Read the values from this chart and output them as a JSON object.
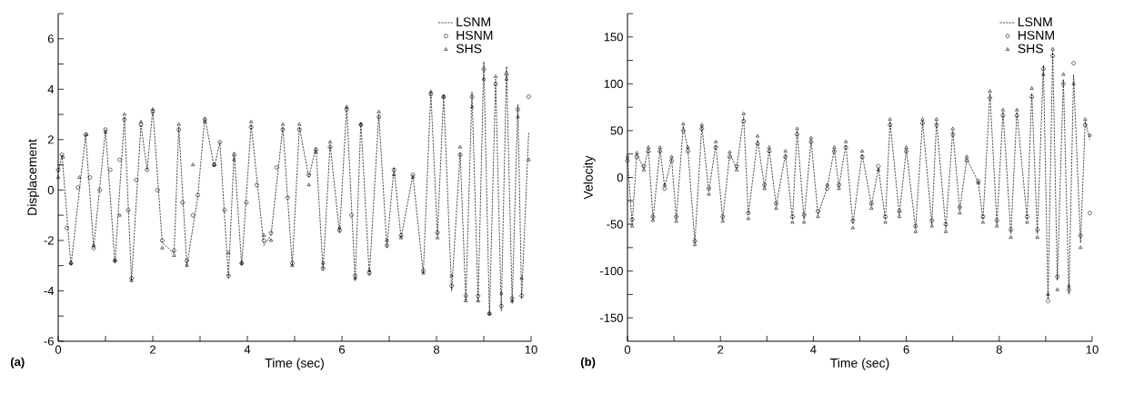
{
  "chart_data": [
    {
      "type": "line",
      "xlabel": "Time (sec)",
      "ylabel": "Displacement",
      "annotations": [
        "(a)"
      ],
      "legend": "top right",
      "xlim": [
        0,
        10
      ],
      "xticks": [
        0,
        {
          "value": 1,
          "label": null
        },
        2,
        {
          "value": 3,
          "label": null
        },
        4,
        {
          "value": 5,
          "label": null
        },
        6,
        {
          "value": 7,
          "label": null
        },
        8,
        {
          "value": 9,
          "label": null
        },
        10
      ],
      "ylim": [
        -6,
        7
      ],
      "yticks": [
        -6,
        {
          "value": -5,
          "label": null
        },
        -4,
        {
          "value": -3,
          "label": null
        },
        -2,
        {
          "value": -1,
          "label": null
        },
        0,
        {
          "value": 1,
          "label": null
        },
        2,
        {
          "value": 3,
          "label": null
        },
        4,
        {
          "value": 5,
          "label": null
        },
        6,
        {
          "value": 7,
          "label": null
        }
      ],
      "series": [
        {
          "name": "LSNM",
          "line_style": "dashed",
          "marker": "none",
          "color": "#000000",
          "x": [
            0.0,
            0.08,
            0.27,
            0.58,
            0.75,
            1.0,
            1.2,
            1.4,
            1.55,
            1.75,
            1.88,
            2.0,
            2.2,
            2.45,
            2.55,
            2.72,
            2.95,
            3.1,
            3.3,
            3.42,
            3.6,
            3.72,
            3.88,
            4.08,
            4.35,
            4.5,
            4.75,
            4.95,
            5.1,
            5.3,
            5.45,
            5.6,
            5.75,
            5.95,
            6.1,
            6.28,
            6.4,
            6.58,
            6.78,
            6.95,
            7.1,
            7.25,
            7.5,
            7.72,
            7.88,
            8.02,
            8.15,
            8.32,
            8.5,
            8.62,
            8.75,
            8.88,
            9.0,
            9.12,
            9.25,
            9.37,
            9.48,
            9.6,
            9.72,
            9.8,
            9.95
          ],
          "values": [
            0.7,
            1.4,
            -3.0,
            2.2,
            -2.3,
            2.4,
            -2.9,
            2.9,
            -3.6,
            2.6,
            0.8,
            3.2,
            -2.1,
            -2.5,
            2.5,
            -3.0,
            -0.3,
            2.9,
            0.9,
            1.9,
            -3.5,
            1.5,
            -3.0,
            2.6,
            -2.2,
            -1.8,
            2.5,
            -3.0,
            2.5,
            0.5,
            1.7,
            -3.2,
            1.8,
            -1.7,
            3.3,
            -3.6,
            2.7,
            -3.4,
            3.0,
            -2.3,
            0.9,
            -1.9,
            0.6,
            -3.3,
            3.9,
            -1.8,
            3.8,
            -4.0,
            1.5,
            -4.4,
            3.9,
            -4.4,
            5.1,
            -5.0,
            4.4,
            -4.8,
            4.9,
            -4.5,
            3.4,
            -4.3,
            2.3
          ]
        },
        {
          "name": "HSNM",
          "type": "scatter",
          "marker": "circle",
          "color": "#000000",
          "x": [
            0.0,
            0.08,
            0.18,
            0.27,
            0.42,
            0.58,
            0.67,
            0.75,
            0.88,
            1.0,
            1.1,
            1.2,
            1.3,
            1.4,
            1.48,
            1.55,
            1.65,
            1.75,
            1.88,
            2.0,
            2.1,
            2.2,
            2.45,
            2.55,
            2.63,
            2.72,
            2.85,
            2.95,
            3.1,
            3.3,
            3.42,
            3.52,
            3.6,
            3.72,
            3.88,
            3.98,
            4.08,
            4.2,
            4.35,
            4.5,
            4.62,
            4.75,
            4.85,
            4.95,
            5.1,
            5.3,
            5.45,
            5.6,
            5.75,
            5.95,
            6.1,
            6.2,
            6.28,
            6.4,
            6.58,
            6.78,
            6.95,
            7.1,
            7.25,
            7.5,
            7.72,
            7.88,
            8.02,
            8.15,
            8.32,
            8.5,
            8.62,
            8.75,
            8.88,
            9.0,
            9.12,
            9.25,
            9.37,
            9.48,
            9.6,
            9.72,
            9.8,
            9.95
          ],
          "values": [
            0.8,
            1.4,
            -1.5,
            -2.9,
            0.1,
            2.2,
            0.5,
            -2.3,
            0.0,
            2.4,
            0.8,
            -2.8,
            1.2,
            2.8,
            -0.8,
            -3.5,
            0.4,
            2.6,
            0.8,
            3.1,
            0.0,
            -2.0,
            -2.4,
            2.4,
            -0.5,
            -2.8,
            -1.0,
            -0.2,
            2.8,
            1.0,
            1.9,
            -0.8,
            -3.4,
            1.4,
            -2.9,
            -0.5,
            2.5,
            0.2,
            -2.0,
            -1.7,
            0.9,
            2.4,
            -0.3,
            -2.9,
            2.4,
            0.6,
            1.6,
            -3.1,
            1.7,
            -1.6,
            3.2,
            -1.0,
            -3.4,
            2.6,
            -3.3,
            2.9,
            -2.2,
            0.8,
            -1.8,
            0.6,
            -3.2,
            3.8,
            -1.7,
            3.7,
            -3.8,
            1.4,
            -4.2,
            3.7,
            -4.2,
            4.8,
            -4.9,
            4.2,
            -4.6,
            4.6,
            -4.3,
            3.2,
            -4.2,
            3.7
          ]
        },
        {
          "name": "SHS",
          "type": "scatter",
          "marker": "triangle",
          "color": "#000000",
          "x": [
            0.0,
            0.1,
            0.27,
            0.45,
            0.6,
            0.75,
            1.0,
            1.2,
            1.3,
            1.4,
            1.55,
            1.75,
            2.0,
            2.2,
            2.45,
            2.55,
            2.72,
            2.85,
            3.1,
            3.3,
            3.6,
            3.72,
            3.88,
            4.08,
            4.35,
            4.5,
            4.75,
            4.95,
            5.1,
            5.3,
            5.45,
            5.6,
            5.75,
            5.95,
            6.1,
            6.28,
            6.4,
            6.58,
            6.78,
            6.95,
            7.1,
            7.25,
            7.5,
            7.72,
            7.88,
            8.02,
            8.15,
            8.32,
            8.5,
            8.62,
            8.75,
            8.88,
            9.0,
            9.12,
            9.25,
            9.37,
            9.48,
            9.6,
            9.72,
            9.8,
            9.95
          ],
          "values": [
            0.5,
            1.3,
            -2.9,
            0.5,
            2.2,
            -2.2,
            2.3,
            -2.8,
            -1.0,
            3.0,
            -3.6,
            2.7,
            3.2,
            -2.3,
            -2.6,
            2.6,
            -3.0,
            1.0,
            2.7,
            1.0,
            -2.5,
            1.2,
            -2.9,
            2.7,
            -1.8,
            -2.0,
            2.6,
            -3.0,
            2.6,
            0.2,
            1.5,
            -2.9,
            1.9,
            -1.5,
            3.3,
            -3.5,
            2.6,
            -3.2,
            3.1,
            -2.0,
            0.6,
            -1.9,
            0.5,
            -3.3,
            3.9,
            -1.9,
            3.7,
            -3.4,
            1.7,
            -4.4,
            3.3,
            -4.4,
            4.4,
            -4.9,
            4.5,
            -4.1,
            4.4,
            -4.4,
            2.9,
            -3.5,
            1.2
          ]
        }
      ]
    },
    {
      "type": "line",
      "xlabel": "Time (sec)",
      "ylabel": "Velocity",
      "annotations": [
        "(b)"
      ],
      "legend": "top right",
      "xlim": [
        0,
        10
      ],
      "xticks": [
        0,
        {
          "value": 1,
          "label": null
        },
        2,
        {
          "value": 3,
          "label": null
        },
        4,
        {
          "value": 5,
          "label": null
        },
        6,
        {
          "value": 7,
          "label": null
        },
        8,
        {
          "value": 9,
          "label": null
        },
        10
      ],
      "ylim": [
        -175,
        175
      ],
      "yticks": [
        -150,
        {
          "value": -125,
          "label": null
        },
        -100,
        {
          "value": -75,
          "label": null
        },
        -50,
        {
          "value": -25,
          "label": null
        },
        0,
        {
          "value": 25,
          "label": null
        },
        50,
        {
          "value": 75,
          "label": null
        },
        100,
        {
          "value": 125,
          "label": null
        },
        150,
        {
          "value": 175,
          "label": null
        }
      ],
      "series": [
        {
          "name": "LSNM",
          "line_style": "dashed",
          "marker": "none",
          "color": "#000000",
          "x": [
            0,
            0.1,
            0.2,
            0.35,
            0.45,
            0.55,
            0.7,
            0.8,
            0.95,
            1.05,
            1.2,
            1.3,
            1.45,
            1.6,
            1.75,
            1.9,
            2.05,
            2.2,
            2.35,
            2.5,
            2.6,
            2.8,
            2.95,
            3.05,
            3.2,
            3.4,
            3.55,
            3.65,
            3.8,
            3.95,
            4.1,
            4.3,
            4.45,
            4.55,
            4.7,
            4.85,
            5.05,
            5.25,
            5.4,
            5.55,
            5.65,
            5.85,
            6.0,
            6.2,
            6.35,
            6.55,
            6.65,
            6.85,
            7.0,
            7.15,
            7.3,
            7.55,
            7.65,
            7.8,
            7.95,
            8.08,
            8.25,
            8.38,
            8.6,
            8.7,
            8.82,
            8.95,
            9.05,
            9.15,
            9.25,
            9.38,
            9.5,
            9.6,
            9.75,
            9.85,
            9.95
          ],
          "values": [
            20,
            -50,
            25,
            10,
            30,
            -45,
            30,
            -10,
            20,
            -45,
            55,
            30,
            -70,
            55,
            -15,
            35,
            -45,
            25,
            10,
            65,
            -40,
            40,
            -10,
            30,
            -30,
            25,
            -45,
            50,
            -45,
            40,
            -40,
            -10,
            30,
            -10,
            35,
            -50,
            25,
            -30,
            10,
            -45,
            60,
            -40,
            30,
            -55,
            60,
            -50,
            60,
            -55,
            50,
            -35,
            20,
            -5,
            -45,
            90,
            -50,
            70,
            -60,
            70,
            -45,
            90,
            -60,
            120,
            -130,
            135,
            -110,
            105,
            -125,
            110,
            -70,
            60,
            40
          ]
        },
        {
          "name": "HSNM",
          "type": "scatter",
          "marker": "circle",
          "color": "#000000",
          "x": [
            0,
            0.1,
            0.2,
            0.35,
            0.45,
            0.55,
            0.7,
            0.8,
            0.95,
            1.05,
            1.2,
            1.3,
            1.45,
            1.6,
            1.75,
            1.9,
            2.05,
            2.2,
            2.35,
            2.5,
            2.6,
            2.8,
            2.95,
            3.05,
            3.2,
            3.4,
            3.55,
            3.65,
            3.8,
            3.95,
            4.1,
            4.3,
            4.45,
            4.55,
            4.7,
            4.85,
            5.05,
            5.25,
            5.4,
            5.55,
            5.65,
            5.85,
            6.0,
            6.2,
            6.35,
            6.55,
            6.65,
            6.85,
            7.0,
            7.15,
            7.3,
            7.55,
            7.65,
            7.8,
            7.95,
            8.08,
            8.25,
            8.38,
            8.6,
            8.7,
            8.82,
            8.95,
            9.05,
            9.15,
            9.25,
            9.38,
            9.5,
            9.6,
            9.75,
            9.85,
            9.95
          ],
          "values": [
            18,
            -45,
            22,
            12,
            28,
            -42,
            28,
            -12,
            18,
            -42,
            50,
            28,
            -68,
            52,
            -12,
            32,
            -42,
            22,
            12,
            60,
            -38,
            36,
            -8,
            28,
            -28,
            22,
            -42,
            46,
            -40,
            38,
            -36,
            -12,
            28,
            -8,
            32,
            -46,
            22,
            -28,
            12,
            -42,
            56,
            -36,
            28,
            -52,
            58,
            -46,
            56,
            -50,
            46,
            -32,
            18,
            -4,
            -42,
            85,
            -46,
            66,
            -56,
            66,
            -42,
            86,
            -56,
            116,
            -132,
            130,
            -106,
            100,
            -120,
            122,
            -62,
            56,
            -38
          ]
        },
        {
          "name": "SHS",
          "type": "scatter",
          "marker": "triangle",
          "color": "#000000",
          "x": [
            0,
            0.1,
            0.2,
            0.35,
            0.45,
            0.55,
            0.7,
            0.8,
            0.95,
            1.05,
            1.2,
            1.3,
            1.45,
            1.6,
            1.75,
            1.9,
            2.05,
            2.2,
            2.35,
            2.5,
            2.6,
            2.8,
            2.95,
            3.05,
            3.2,
            3.4,
            3.55,
            3.65,
            3.8,
            3.95,
            4.1,
            4.3,
            4.45,
            4.55,
            4.7,
            4.85,
            5.05,
            5.25,
            5.4,
            5.55,
            5.65,
            5.85,
            6.0,
            6.2,
            6.35,
            6.55,
            6.65,
            6.85,
            7.0,
            7.15,
            7.3,
            7.55,
            7.65,
            7.8,
            7.95,
            8.08,
            8.25,
            8.38,
            8.6,
            8.7,
            8.82,
            8.95,
            9.05,
            9.15,
            9.25,
            9.38,
            9.5,
            9.6,
            9.75,
            9.85,
            9.95
          ],
          "values": [
            22,
            -52,
            26,
            8,
            32,
            -46,
            32,
            -8,
            22,
            -47,
            57,
            32,
            -72,
            56,
            -18,
            38,
            -47,
            27,
            8,
            68,
            -44,
            44,
            -12,
            32,
            -33,
            28,
            -48,
            52,
            -48,
            42,
            -42,
            -8,
            32,
            -12,
            38,
            -54,
            28,
            -33,
            8,
            -48,
            62,
            -42,
            32,
            -58,
            62,
            -52,
            62,
            -58,
            52,
            -38,
            22,
            -6,
            -48,
            92,
            -52,
            72,
            -64,
            72,
            -48,
            95,
            -64,
            110,
            -125,
            137,
            -120,
            110,
            -116,
            100,
            -75,
            62,
            45
          ]
        }
      ]
    }
  ]
}
